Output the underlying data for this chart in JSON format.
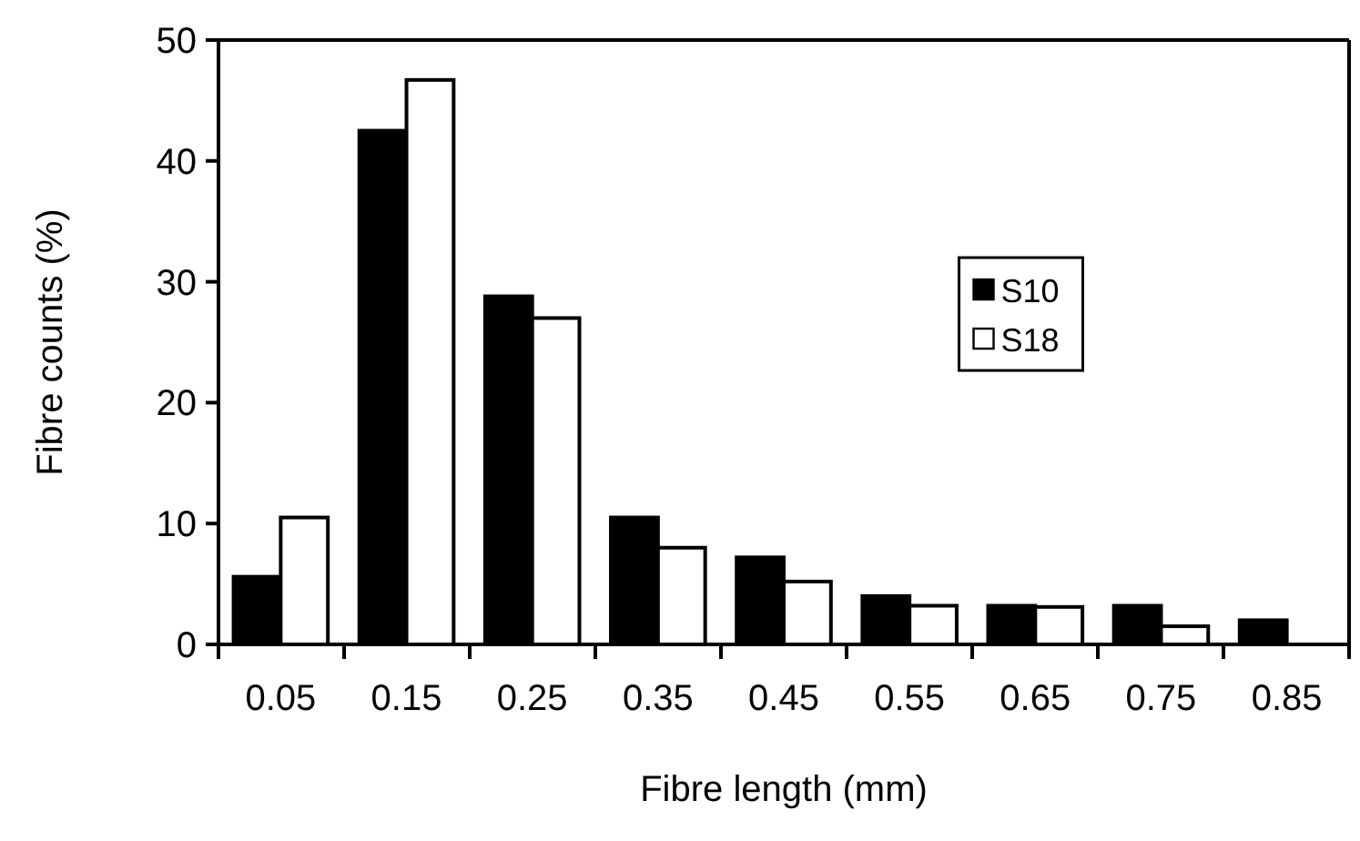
{
  "chart_data": {
    "type": "bar",
    "xlabel": "Fibre length (mm)",
    "ylabel": "Fibre counts (%)",
    "categories": [
      "0.05",
      "0.15",
      "0.25",
      "0.35",
      "0.45",
      "0.55",
      "0.65",
      "0.75",
      "0.85"
    ],
    "series": [
      {
        "name": "S10",
        "color": "#000000",
        "values": [
          5.6,
          42.5,
          28.8,
          10.5,
          7.2,
          4,
          3.2,
          3.2,
          2
        ]
      },
      {
        "name": "S18",
        "color": "#ffffff",
        "values": [
          10.5,
          46.7,
          27,
          8,
          5.2,
          3.2,
          3.1,
          1.5,
          0
        ]
      }
    ],
    "ylim": [
      0,
      50
    ],
    "yticks": [
      0,
      10,
      20,
      30,
      40,
      50
    ],
    "grid": false,
    "legend": "right"
  }
}
